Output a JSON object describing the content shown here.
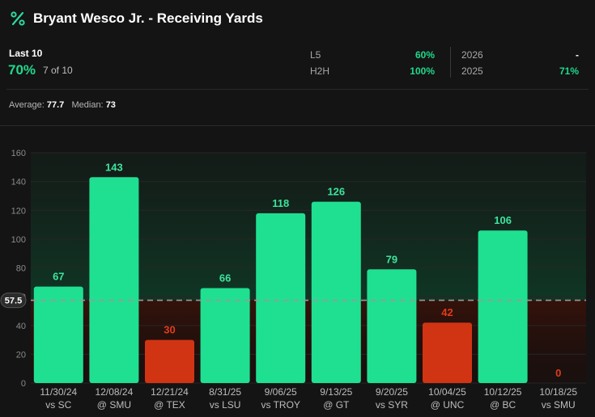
{
  "header": {
    "title": "Bryant Wesco Jr. - Receiving Yards",
    "icon": "percent-icon"
  },
  "stats": {
    "last_label": "Last 10",
    "last_pct": "70%",
    "last_count": "7 of 10",
    "l5_label": "L5",
    "l5_value": "60%",
    "h2h_label": "H2H",
    "h2h_value": "100%",
    "y2026_label": "2026",
    "y2026_value": "-",
    "y2025_label": "2025",
    "y2025_value": "71%"
  },
  "summary": {
    "avg_label": "Average:",
    "avg_value": "77.7",
    "median_label": "Median:",
    "median_value": "73"
  },
  "colors": {
    "over": "#1fe091",
    "under": "#d13413",
    "over_text": "#3ee39d",
    "under_text": "#e03c1a"
  },
  "chart_data": {
    "type": "bar",
    "line_value": 57.5,
    "line_label": "57.5",
    "ylim": [
      0,
      160
    ],
    "yticks": [
      "0",
      "20",
      "40",
      "60",
      "80",
      "100",
      "120",
      "140",
      "160"
    ],
    "categories": [
      {
        "date": "11/30/24",
        "opp": "vs SC"
      },
      {
        "date": "12/08/24",
        "opp": "@ SMU"
      },
      {
        "date": "12/21/24",
        "opp": "@ TEX"
      },
      {
        "date": "8/31/25",
        "opp": "vs LSU"
      },
      {
        "date": "9/06/25",
        "opp": "vs TROY"
      },
      {
        "date": "9/13/25",
        "opp": "@ GT"
      },
      {
        "date": "9/20/25",
        "opp": "vs SYR"
      },
      {
        "date": "10/04/25",
        "opp": "@ UNC"
      },
      {
        "date": "10/12/25",
        "opp": "@ BC"
      },
      {
        "date": "10/18/25",
        "opp": "vs SMU"
      }
    ],
    "values": [
      67,
      143,
      30,
      66,
      118,
      126,
      79,
      42,
      106,
      0
    ],
    "labels": [
      "67",
      "143",
      "30",
      "66",
      "118",
      "126",
      "79",
      "42",
      "106",
      "0"
    ]
  }
}
